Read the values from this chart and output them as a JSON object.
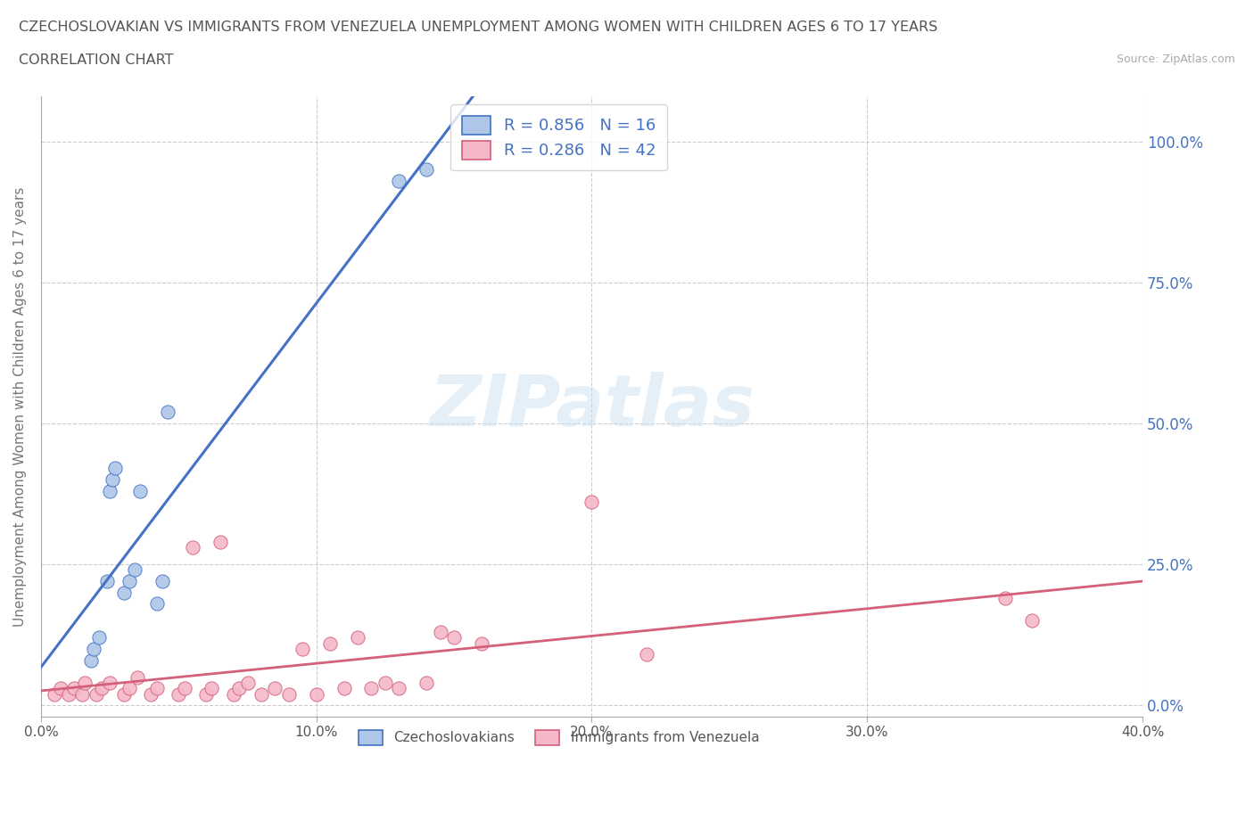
{
  "title_line1": "CZECHOSLOVAKIAN VS IMMIGRANTS FROM VENEZUELA UNEMPLOYMENT AMONG WOMEN WITH CHILDREN AGES 6 TO 17 YEARS",
  "title_line2": "CORRELATION CHART",
  "source_text": "Source: ZipAtlas.com",
  "ylabel": "Unemployment Among Women with Children Ages 6 to 17 years",
  "xlim": [
    0.0,
    0.4
  ],
  "ylim": [
    -0.02,
    1.08
  ],
  "xtick_values": [
    0.0,
    0.1,
    0.2,
    0.3,
    0.4
  ],
  "ytick_values": [
    0.0,
    0.25,
    0.5,
    0.75,
    1.0
  ],
  "right_ytick_labels": [
    "100.0%",
    "75.0%",
    "50.0%",
    "25.0%",
    "0.0%"
  ],
  "blue_R": 0.856,
  "blue_N": 16,
  "pink_R": 0.286,
  "pink_N": 42,
  "blue_fill_color": "#aec6e8",
  "pink_fill_color": "#f5b8c8",
  "blue_edge_color": "#4472c4",
  "pink_edge_color": "#d4607a",
  "watermark_text": "ZIPatlas",
  "blue_scatter_x": [
    0.018,
    0.019,
    0.021,
    0.024,
    0.025,
    0.026,
    0.027,
    0.03,
    0.032,
    0.034,
    0.036,
    0.042,
    0.044,
    0.046,
    0.13,
    0.14
  ],
  "blue_scatter_y": [
    0.08,
    0.1,
    0.12,
    0.22,
    0.38,
    0.4,
    0.42,
    0.2,
    0.22,
    0.24,
    0.38,
    0.18,
    0.22,
    0.52,
    0.93,
    0.95
  ],
  "pink_scatter_x": [
    0.005,
    0.007,
    0.01,
    0.012,
    0.015,
    0.016,
    0.02,
    0.022,
    0.025,
    0.03,
    0.032,
    0.035,
    0.04,
    0.042,
    0.05,
    0.052,
    0.055,
    0.06,
    0.062,
    0.065,
    0.07,
    0.072,
    0.075,
    0.08,
    0.085,
    0.09,
    0.095,
    0.1,
    0.105,
    0.11,
    0.115,
    0.12,
    0.125,
    0.13,
    0.14,
    0.145,
    0.15,
    0.16,
    0.2,
    0.22,
    0.35,
    0.36
  ],
  "pink_scatter_y": [
    0.02,
    0.03,
    0.02,
    0.03,
    0.02,
    0.04,
    0.02,
    0.03,
    0.04,
    0.02,
    0.03,
    0.05,
    0.02,
    0.03,
    0.02,
    0.03,
    0.28,
    0.02,
    0.03,
    0.29,
    0.02,
    0.03,
    0.04,
    0.02,
    0.03,
    0.02,
    0.1,
    0.02,
    0.11,
    0.03,
    0.12,
    0.03,
    0.04,
    0.03,
    0.04,
    0.13,
    0.12,
    0.11,
    0.36,
    0.09,
    0.19,
    0.15
  ],
  "background_color": "#ffffff",
  "grid_color": "#cccccc"
}
